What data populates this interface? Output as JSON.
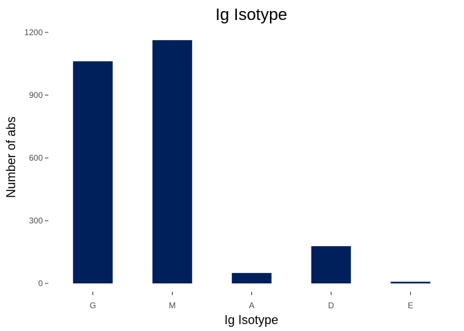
{
  "chart_data": {
    "type": "bar",
    "title": "Ig Isotype",
    "xlabel": "Ig Isotype",
    "ylabel": "Number of abs",
    "categories": [
      "G",
      "M",
      "A",
      "D",
      "E"
    ],
    "values": [
      1062,
      1163,
      50,
      178,
      8
    ],
    "ylim": [
      0,
      1200
    ],
    "yticks": [
      0,
      300,
      600,
      900,
      1200
    ],
    "grid": false,
    "legend": "none",
    "bar_color": "#00205b"
  }
}
